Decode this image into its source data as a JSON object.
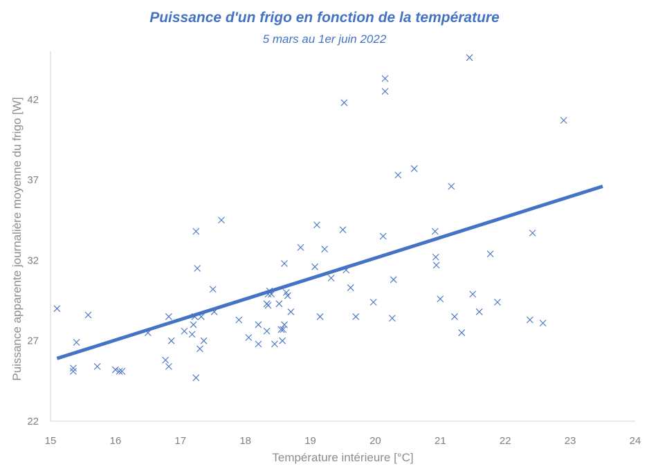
{
  "chart_data": {
    "type": "scatter",
    "title": "Puissance d'un frigo en fonction de la température",
    "subtitle": "5 mars au 1er juin 2022",
    "xlabel": "Température intérieure [°C]",
    "ylabel": "Puissance apparente journalière moyenne du frigo [W]",
    "xlim": [
      15,
      24
    ],
    "ylim": [
      22,
      45
    ],
    "x_ticks": [
      15,
      16,
      17,
      18,
      19,
      20,
      21,
      22,
      23,
      24
    ],
    "y_ticks": [
      22,
      27,
      32,
      37,
      42
    ],
    "grid": false,
    "legend": "none",
    "colors": {
      "marker": "#4472C4",
      "trendline": "#4472C4",
      "text": "#4472C4",
      "axis": "#d9d9d9"
    },
    "series": [
      {
        "marker": "x",
        "points": [
          [
            15.1,
            29.0
          ],
          [
            15.35,
            25.3
          ],
          [
            15.35,
            25.1
          ],
          [
            15.4,
            26.9
          ],
          [
            15.58,
            28.6
          ],
          [
            15.72,
            25.4
          ],
          [
            16.0,
            25.2
          ],
          [
            16.06,
            25.1
          ],
          [
            16.1,
            25.1
          ],
          [
            16.5,
            27.5
          ],
          [
            16.77,
            25.8
          ],
          [
            16.82,
            25.4
          ],
          [
            16.82,
            28.5
          ],
          [
            16.86,
            27.0
          ],
          [
            17.06,
            27.6
          ],
          [
            17.18,
            27.4
          ],
          [
            17.2,
            28.0
          ],
          [
            17.22,
            28.5
          ],
          [
            17.24,
            24.7
          ],
          [
            17.24,
            33.8
          ],
          [
            17.26,
            31.5
          ],
          [
            17.3,
            26.5
          ],
          [
            17.32,
            28.5
          ],
          [
            17.36,
            27.0
          ],
          [
            17.5,
            30.2
          ],
          [
            17.52,
            28.8
          ],
          [
            17.63,
            34.5
          ],
          [
            17.9,
            28.3
          ],
          [
            18.05,
            27.2
          ],
          [
            18.2,
            26.8
          ],
          [
            18.2,
            28.0
          ],
          [
            18.33,
            27.6
          ],
          [
            18.33,
            29.3
          ],
          [
            18.35,
            29.2
          ],
          [
            18.35,
            29.9
          ],
          [
            18.37,
            30.1
          ],
          [
            18.4,
            29.9
          ],
          [
            18.45,
            26.8
          ],
          [
            18.52,
            29.3
          ],
          [
            18.55,
            27.7
          ],
          [
            18.57,
            27.0
          ],
          [
            18.58,
            27.7
          ],
          [
            18.6,
            31.8
          ],
          [
            18.6,
            28.0
          ],
          [
            18.63,
            30.0
          ],
          [
            18.65,
            29.8
          ],
          [
            18.7,
            28.8
          ],
          [
            18.85,
            32.8
          ],
          [
            19.07,
            31.6
          ],
          [
            19.1,
            34.2
          ],
          [
            19.15,
            28.5
          ],
          [
            19.22,
            32.7
          ],
          [
            19.32,
            30.9
          ],
          [
            19.5,
            33.9
          ],
          [
            19.52,
            41.8
          ],
          [
            19.55,
            31.4
          ],
          [
            19.62,
            30.3
          ],
          [
            19.7,
            28.5
          ],
          [
            19.97,
            29.4
          ],
          [
            20.12,
            33.5
          ],
          [
            20.15,
            43.3
          ],
          [
            20.15,
            42.5
          ],
          [
            20.26,
            28.4
          ],
          [
            20.28,
            30.8
          ],
          [
            20.35,
            37.3
          ],
          [
            20.6,
            37.7
          ],
          [
            20.92,
            33.8
          ],
          [
            20.93,
            32.2
          ],
          [
            20.94,
            31.7
          ],
          [
            21.0,
            29.6
          ],
          [
            21.17,
            36.6
          ],
          [
            21.22,
            28.5
          ],
          [
            21.33,
            27.5
          ],
          [
            21.45,
            44.6
          ],
          [
            21.5,
            29.9
          ],
          [
            21.6,
            28.8
          ],
          [
            21.77,
            32.4
          ],
          [
            21.88,
            29.4
          ],
          [
            22.38,
            28.3
          ],
          [
            22.42,
            33.7
          ],
          [
            22.58,
            28.1
          ],
          [
            22.9,
            40.7
          ]
        ]
      }
    ],
    "trendline": {
      "x": [
        15.1,
        23.5
      ],
      "y": [
        25.9,
        36.6
      ]
    }
  }
}
